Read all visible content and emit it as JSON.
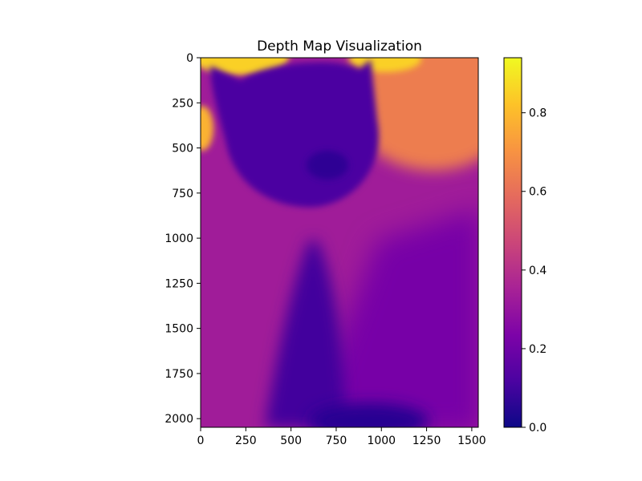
{
  "chart_data": {
    "type": "heatmap",
    "title": "Depth Map Visualization",
    "xlabel": "",
    "ylabel": "",
    "colormap": "plasma",
    "image_size": [
      1536,
      2048
    ],
    "xlim": [
      0,
      1536
    ],
    "ylim": [
      2048,
      0
    ],
    "x_ticks": [
      0,
      250,
      500,
      750,
      1000,
      1250,
      1500
    ],
    "y_ticks": [
      0,
      250,
      500,
      750,
      1000,
      1250,
      1500,
      1750,
      2000
    ],
    "colorbar": {
      "range": [
        0.0,
        0.94
      ],
      "ticks": [
        0.0,
        0.2,
        0.4,
        0.6,
        0.8
      ],
      "tick_labels": [
        "0.0",
        "0.2",
        "0.4",
        "0.6",
        "0.8"
      ]
    },
    "regions": [
      {
        "name": "background",
        "value": 0.33
      },
      {
        "name": "lower-right-floor",
        "value": 0.22
      },
      {
        "name": "upper-right-lamp-glow",
        "value": 0.64
      },
      {
        "name": "top-edge-highlight",
        "value": 0.85
      },
      {
        "name": "left-edge-highlight",
        "value": 0.78
      },
      {
        "name": "cat-head",
        "value": 0.12
      },
      {
        "name": "cat-nose",
        "value": 0.06
      },
      {
        "name": "cat-body",
        "value": 0.1
      },
      {
        "name": "bottom-shadow",
        "value": 0.05
      }
    ]
  }
}
